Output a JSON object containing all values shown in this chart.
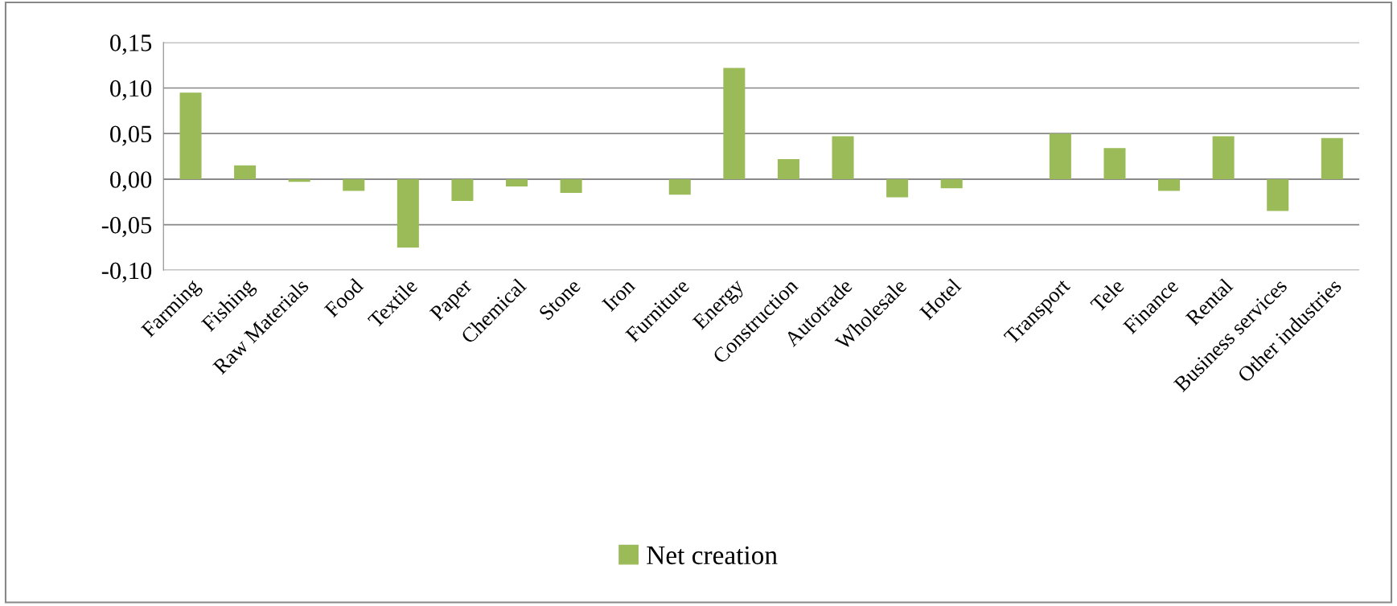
{
  "chart_data": {
    "type": "bar",
    "categories": [
      "Farming",
      "Fishing",
      "Raw Materials",
      "Food",
      "Textile",
      "Paper",
      "Chemical",
      "Stone",
      "Iron",
      "Furniture",
      "Energy",
      "Construction",
      "Autotrade",
      "Wholesale",
      "Hotel",
      null,
      "Transport",
      "Tele",
      "Finance",
      "Rental",
      "Business services",
      "Other industries"
    ],
    "series": [
      {
        "name": "Net creation",
        "color": "#9bbb59",
        "values": [
          0.095,
          0.015,
          -0.003,
          -0.013,
          -0.075,
          -0.024,
          -0.008,
          -0.015,
          null,
          -0.017,
          0.122,
          0.022,
          0.047,
          -0.02,
          -0.01,
          null,
          0.05,
          0.034,
          -0.013,
          0.047,
          -0.035,
          0.045
        ]
      }
    ],
    "ylim": [
      -0.1,
      0.15
    ],
    "yticks": [
      {
        "value": -0.1,
        "label": "-0,10"
      },
      {
        "value": -0.05,
        "label": "-0,05"
      },
      {
        "value": 0.0,
        "label": "0,00"
      },
      {
        "value": 0.05,
        "label": "0,05"
      },
      {
        "value": 0.1,
        "label": "0,10"
      },
      {
        "value": 0.15,
        "label": "0,15"
      }
    ],
    "grid": "y",
    "legend": "bottom"
  }
}
